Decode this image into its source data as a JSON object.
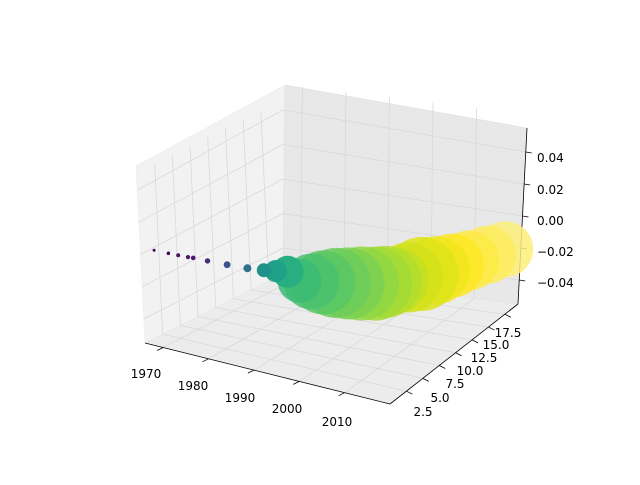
{
  "chart_data": {
    "type": "scatter",
    "title": "",
    "xlabel": "",
    "ylabel": "",
    "zlabel": "",
    "x_ticks": [
      "1970",
      "1980",
      "1990",
      "2000",
      "2010"
    ],
    "y_ticks": [
      "2.5",
      "5.0",
      "7.5",
      "10.0",
      "12.5",
      "15.0",
      "17.5"
    ],
    "z_ticks": [
      "0.04",
      "0.02",
      "0.00",
      "−0.02",
      "−0.04"
    ],
    "xlim": [
      1966,
      2020
    ],
    "ylim": [
      0,
      19.5
    ],
    "zlim": [
      -0.055,
      0.055
    ],
    "grid": true,
    "colormap": "viridis",
    "series": [
      {
        "points": [
          {
            "x": 1968,
            "y": 0.0,
            "z": 0,
            "size": 1.5,
            "color": "#440154"
          },
          {
            "x": 1971,
            "y": 0.1,
            "z": 0,
            "size": 1.8,
            "color": "#46085c"
          },
          {
            "x": 1973,
            "y": 0.2,
            "z": 0,
            "size": 2.0,
            "color": "#471063"
          },
          {
            "x": 1975,
            "y": 0.3,
            "z": 0,
            "size": 2.1,
            "color": "#481769"
          },
          {
            "x": 1976,
            "y": 0.4,
            "z": 0,
            "size": 2.3,
            "color": "#48186a"
          },
          {
            "x": 1979,
            "y": 0.5,
            "z": 0,
            "size": 2.7,
            "color": "#472c7a"
          },
          {
            "x": 1983,
            "y": 0.7,
            "z": 0,
            "size": 3.4,
            "color": "#3b518b"
          },
          {
            "x": 1987,
            "y": 1.0,
            "z": 0,
            "size": 4.0,
            "color": "#2d718e"
          },
          {
            "x": 1990,
            "y": 1.4,
            "z": 0,
            "size": 7,
            "color": "#21918c"
          },
          {
            "x": 1992,
            "y": 1.8,
            "z": 0,
            "size": 11,
            "color": "#1fa088"
          },
          {
            "x": 1994,
            "y": 2.2,
            "z": 0,
            "size": 16,
            "color": "#28ae80"
          },
          {
            "x": 1996,
            "y": 2.6,
            "z": 0,
            "size": 22,
            "color": "#3bbb75"
          },
          {
            "x": 1998,
            "y": 3.0,
            "z": 0,
            "size": 28,
            "color": "#4ac16d"
          },
          {
            "x": 2000,
            "y": 3.4,
            "z": 0,
            "size": 32,
            "color": "#58c765"
          },
          {
            "x": 2002,
            "y": 3.9,
            "z": 0,
            "size": 35,
            "color": "#6ccd5a"
          },
          {
            "x": 2004,
            "y": 4.4,
            "z": 0,
            "size": 36,
            "color": "#7ad151"
          },
          {
            "x": 2006,
            "y": 5.0,
            "z": 0,
            "size": 37,
            "color": "#8fd744"
          },
          {
            "x": 2008,
            "y": 5.6,
            "z": 0,
            "size": 37,
            "color": "#a2da37"
          },
          {
            "x": 2009,
            "y": 6.4,
            "z": 0,
            "size": 36,
            "color": "#b0dd2f"
          },
          {
            "x": 2010,
            "y": 7.2,
            "z": 0,
            "size": 33,
            "color": "#c2df23"
          },
          {
            "x": 2011,
            "y": 8.3,
            "z": 0,
            "size": 35,
            "color": "#d2e21b"
          },
          {
            "x": 2012,
            "y": 9.6,
            "z": 0,
            "size": 37,
            "color": "#dde318"
          },
          {
            "x": 2013,
            "y": 11.0,
            "z": 0,
            "size": 34,
            "color": "#f1e51d"
          },
          {
            "x": 2014,
            "y": 12.6,
            "z": 0,
            "size": 32,
            "color": "#fde725"
          },
          {
            "x": 2015,
            "y": 14.4,
            "z": 0,
            "size": 30,
            "color": "#fdea45"
          },
          {
            "x": 2016,
            "y": 16.3,
            "z": 0,
            "size": 29,
            "color": "#fdec5e"
          },
          {
            "x": 2017,
            "y": 18.2,
            "z": 0,
            "size": 28,
            "color": "#fdee7a"
          }
        ]
      }
    ]
  }
}
